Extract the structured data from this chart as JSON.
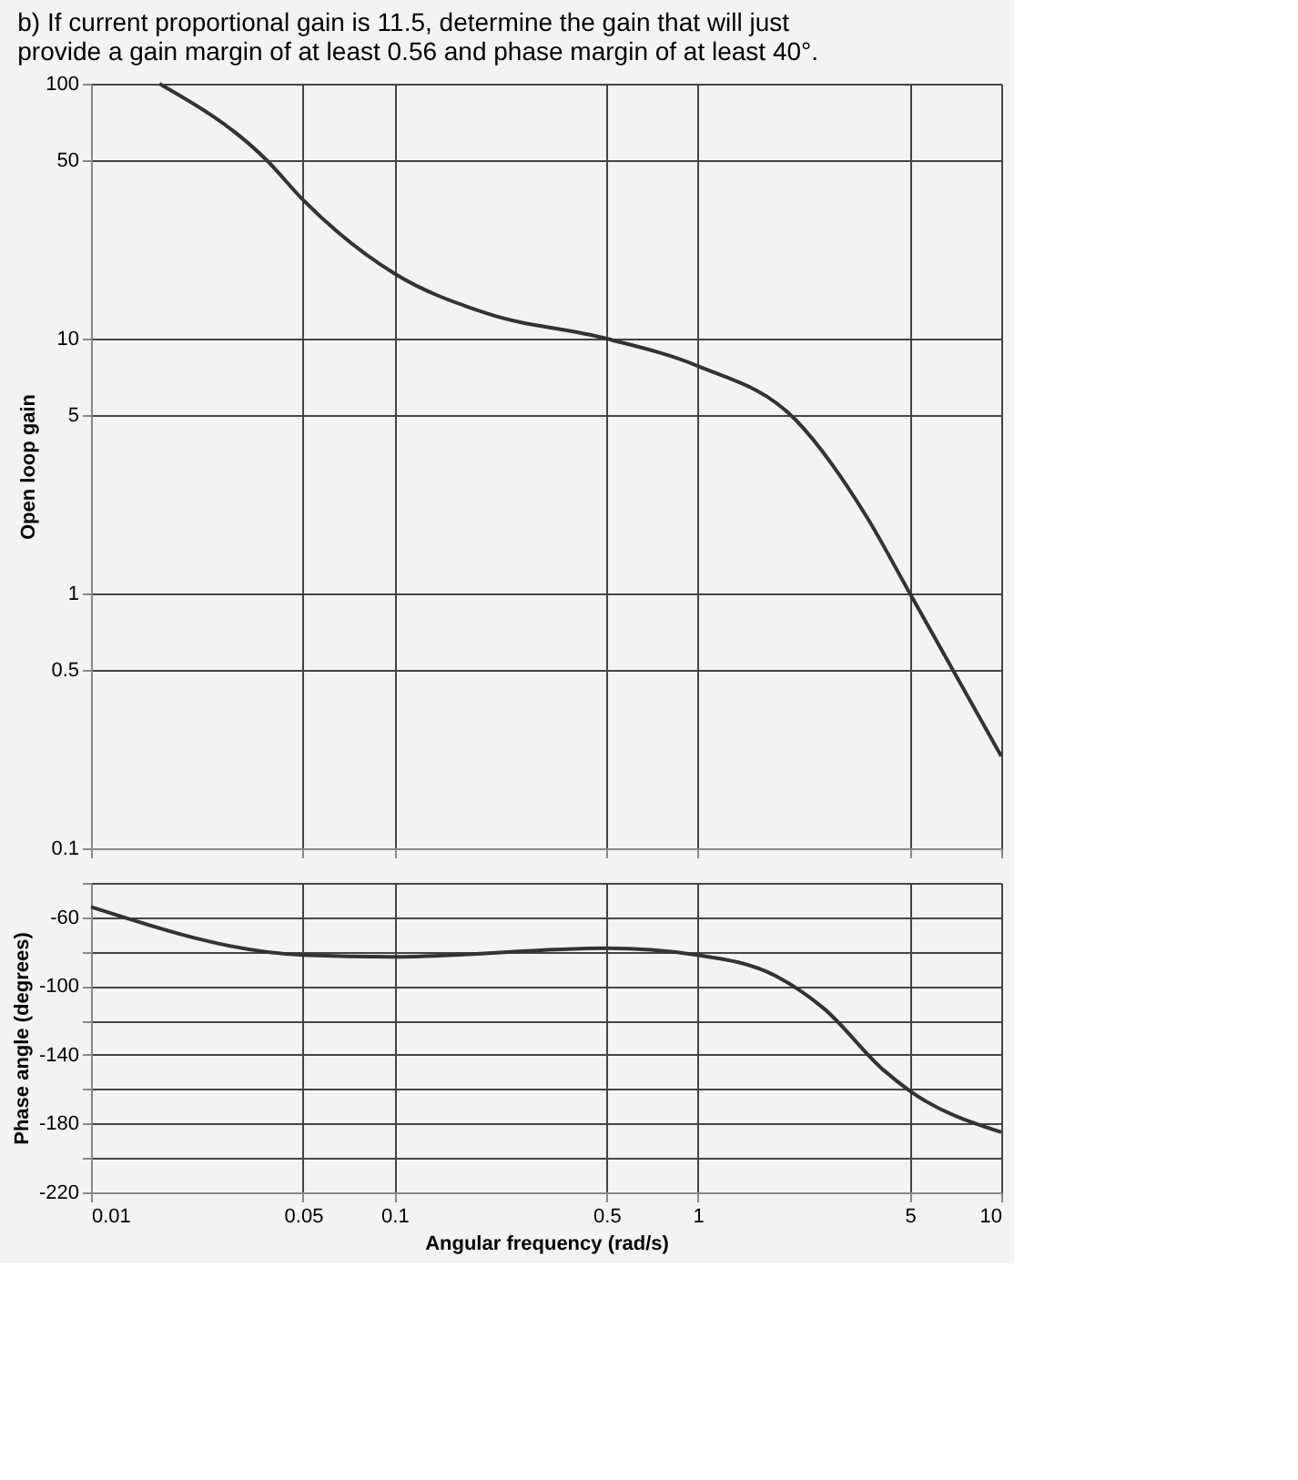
{
  "chart_data": [
    {
      "type": "line",
      "title": "b) If current proportional gain is 11.5, determine the gain that will just provide a gain margin of at least 0.56 and phase margin of at least 40°.",
      "ylabel": "Open loop gain",
      "log": "xy",
      "grid": true,
      "tick_labels": "y",
      "marker": "none",
      "line_style": "solid",
      "xlim": [
        0.01,
        10
      ],
      "xticks": [
        0.01,
        0.05,
        0.1,
        0.5,
        1,
        5,
        10
      ],
      "ylim": [
        0.1,
        100
      ],
      "yticks": [
        100,
        50,
        10,
        5,
        1,
        0.5,
        0.1
      ],
      "series": [
        {
          "color": "#333333",
          "x": [
            0.0168,
            0.038,
            0.05,
            0.1,
            0.2,
            0.5,
            1,
            2.1,
            3.6,
            5,
            10
          ],
          "values": [
            100,
            50,
            35,
            18,
            12.6,
            10,
            7.8,
            4.8,
            2.0,
            1.0,
            0.23
          ]
        }
      ]
    },
    {
      "type": "line",
      "xlabel": "Angular frequency (rad/s)",
      "ylabel": "Phase angle (degrees)",
      "log": "x",
      "grid": true,
      "marker": "none",
      "line_style": "solid",
      "xlim": [
        0.01,
        10
      ],
      "xticks": [
        0.01,
        0.05,
        0.1,
        0.5,
        1,
        5,
        10
      ],
      "ylim": [
        -220,
        -40
      ],
      "yticks": [
        {
          "value": -40,
          "label": null
        },
        -60,
        {
          "value": -80,
          "label": null
        },
        -100,
        {
          "value": -120,
          "label": null
        },
        -140,
        {
          "value": -160,
          "label": null
        },
        -180,
        {
          "value": -200,
          "label": null
        },
        -220
      ],
      "series": [
        {
          "color": "#333333",
          "x": [
            0.01,
            0.05,
            0.1,
            0.5,
            1,
            1.8,
            2.6,
            4.1,
            5,
            10
          ],
          "values": [
            -54,
            -82,
            -83,
            -78,
            -82,
            -94,
            -113,
            -149,
            -161,
            -185
          ]
        }
      ]
    }
  ]
}
